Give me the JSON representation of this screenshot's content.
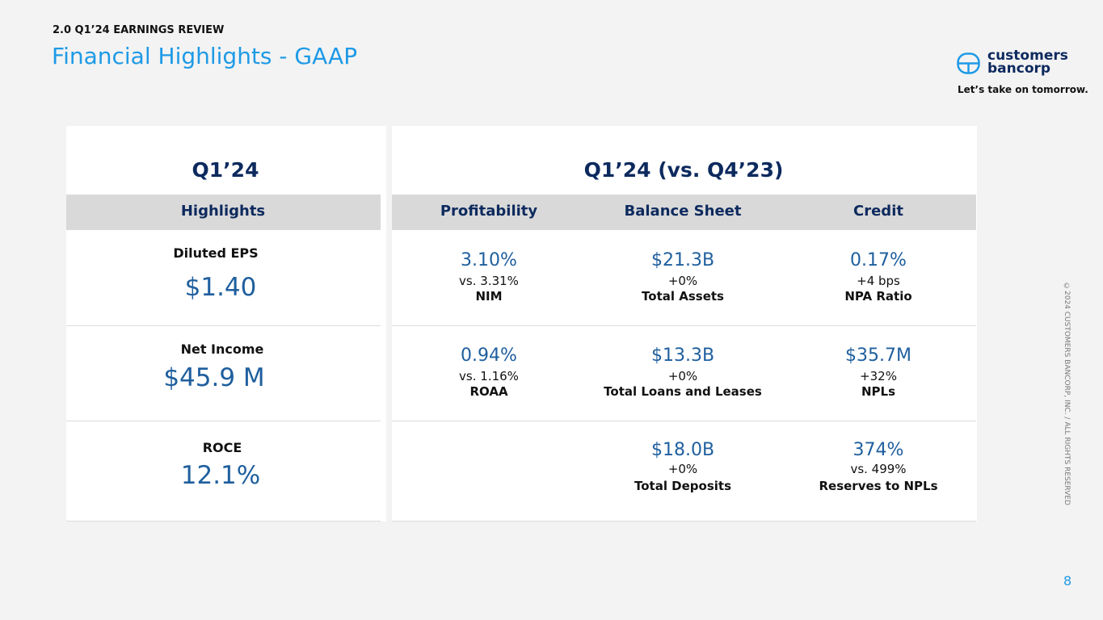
{
  "header": {
    "section": "2.0 Q1’24 EARNINGS REVIEW",
    "title": "Financial Highlights - GAAP"
  },
  "brand": {
    "name_line1": "customers",
    "name_line2": "bancorp",
    "tagline": "Let’s take on tomorrow."
  },
  "left_panel": {
    "title": "Q1’24",
    "header": "Highlights",
    "items": [
      {
        "label": "Diluted EPS",
        "value": "$1.40"
      },
      {
        "label": "Net Income",
        "value": "$45.9 M"
      },
      {
        "label": "ROCE",
        "value": "12.1%"
      }
    ]
  },
  "right_panel": {
    "title": "Q1’24 (vs. Q4’23)",
    "columns": [
      {
        "name": "Profitability",
        "items": [
          {
            "value": "3.10%",
            "change": "vs. 3.31%",
            "label": "NIM"
          },
          {
            "value": "0.94%",
            "change": "vs. 1.16%",
            "label": "ROAA"
          }
        ]
      },
      {
        "name": "Balance Sheet",
        "items": [
          {
            "value": "$21.3B",
            "change": "+0%",
            "label": "Total Assets"
          },
          {
            "value": "$13.3B",
            "change": "+0%",
            "label": "Total Loans and Leases"
          },
          {
            "value": "$18.0B",
            "change": "+0%",
            "label": "Total Deposits"
          }
        ]
      },
      {
        "name": "Credit",
        "items": [
          {
            "value": "0.17%",
            "change": "+4 bps",
            "label": "NPA Ratio"
          },
          {
            "value": "$35.7M",
            "change": "+32%",
            "label": "NPLs"
          },
          {
            "value": "374%",
            "change": "vs. 499%",
            "label": "Reserves to NPLs"
          }
        ]
      }
    ]
  },
  "footer": {
    "copyright": "©2024 CUSTOMERS BANCORP, INC. / ALL RIGHTS RESERVED",
    "page": "8"
  }
}
